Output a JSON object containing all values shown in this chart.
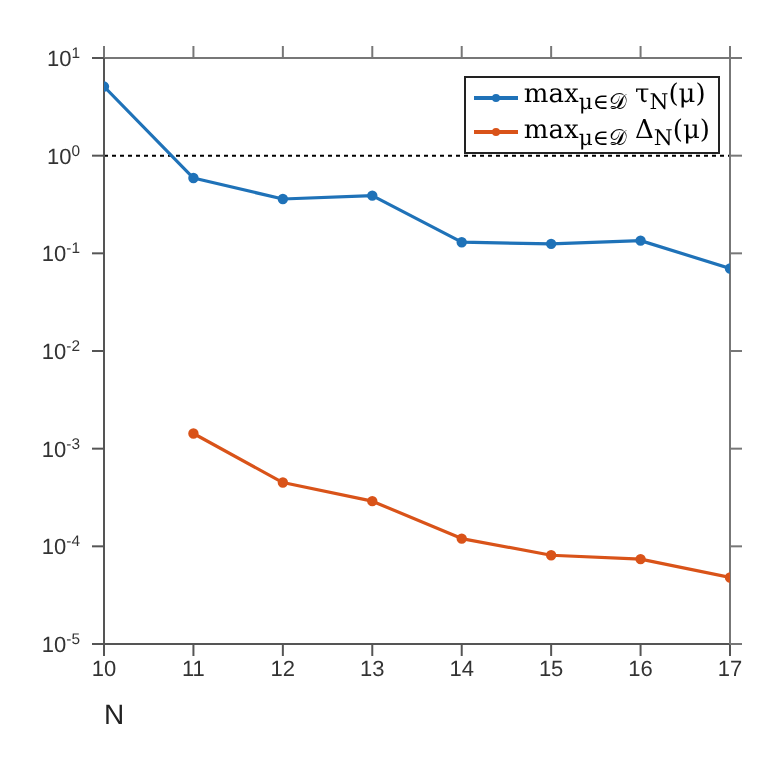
{
  "chart_data": {
    "type": "line",
    "xlabel": "N",
    "x": [
      10,
      11,
      12,
      13,
      14,
      15,
      16,
      17
    ],
    "series": [
      {
        "name": "max$_{μ∈𝒟}$ τ$_{N}$(μ)",
        "color": "#1f72b8",
        "values": [
          5.1,
          0.59,
          0.36,
          0.39,
          0.13,
          0.125,
          0.135,
          0.07
        ]
      },
      {
        "name": "max$_{μ∈𝒟}$ Δ$_{N}$(μ)",
        "color": "#d95319",
        "values": [
          null,
          0.00143,
          0.00045,
          0.00029,
          0.00012,
          8.1e-05,
          7.4e-05,
          4.8e-05
        ]
      }
    ],
    "xlim": [
      10,
      17
    ],
    "xticks": [
      10,
      11,
      12,
      13,
      14,
      15,
      16,
      17
    ],
    "ylim": [
      1e-05,
      10
    ],
    "yticks": [
      {
        "value": 1e-05,
        "label": "10$^{-5}$"
      },
      {
        "value": 0.0001,
        "label": "10$^{-4}$"
      },
      {
        "value": 0.001,
        "label": "10$^{-3}$"
      },
      {
        "value": 0.01,
        "label": "10$^{-2}$"
      },
      {
        "value": 0.1,
        "label": "10$^{-1}$"
      },
      {
        "value": 1,
        "label": "10$^{0}$"
      },
      {
        "value": 10,
        "label": "10$^{1}$"
      }
    ],
    "log": "y",
    "grid": false,
    "legend": "top right",
    "marker": "circle",
    "line_style": "solid",
    "ref_lines": [
      {
        "axis": "y",
        "value": 1,
        "color": "#000000",
        "line_style": "dotted"
      }
    ]
  }
}
